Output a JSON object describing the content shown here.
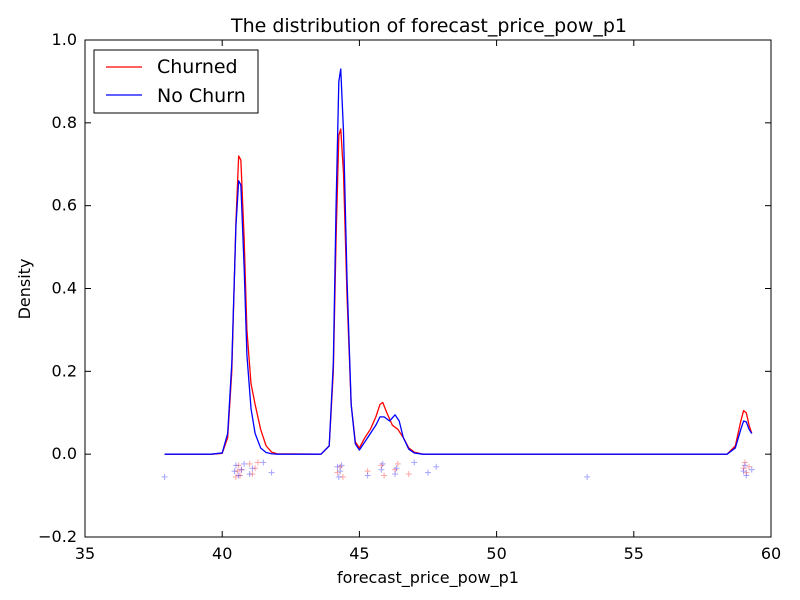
{
  "chart_data": {
    "type": "line",
    "title": "The distribution of forecast_price_pow_p1",
    "xlabel": "forecast_price_pow_p1",
    "ylabel": "Density",
    "xlim": [
      35,
      60
    ],
    "ylim": [
      -0.2,
      1.0
    ],
    "xticks": [
      35,
      40,
      45,
      50,
      55,
      60
    ],
    "xtick_labels": [
      "35",
      "40",
      "45",
      "50",
      "55",
      "60"
    ],
    "yticks": [
      -0.2,
      0.0,
      0.2,
      0.4,
      0.6,
      0.8,
      1.0
    ],
    "ytick_labels": [
      "−0.2",
      "0.0",
      "0.2",
      "0.4",
      "0.6",
      "0.8",
      "1.0"
    ],
    "grid": false,
    "legend_position": "top-left",
    "series": [
      {
        "name": "Churned",
        "color": "#ff0000",
        "points": [
          [
            37.9,
            0.0
          ],
          [
            39.6,
            0.0
          ],
          [
            40.0,
            0.002
          ],
          [
            40.2,
            0.04
          ],
          [
            40.35,
            0.2
          ],
          [
            40.5,
            0.56
          ],
          [
            40.6,
            0.72
          ],
          [
            40.68,
            0.71
          ],
          [
            40.8,
            0.52
          ],
          [
            40.9,
            0.3
          ],
          [
            41.05,
            0.17
          ],
          [
            41.2,
            0.12
          ],
          [
            41.4,
            0.06
          ],
          [
            41.6,
            0.02
          ],
          [
            41.8,
            0.005
          ],
          [
            42.0,
            0.001
          ],
          [
            43.6,
            0.0
          ],
          [
            43.9,
            0.02
          ],
          [
            44.05,
            0.2
          ],
          [
            44.15,
            0.52
          ],
          [
            44.25,
            0.77
          ],
          [
            44.32,
            0.785
          ],
          [
            44.42,
            0.68
          ],
          [
            44.55,
            0.38
          ],
          [
            44.7,
            0.12
          ],
          [
            44.85,
            0.03
          ],
          [
            45.0,
            0.015
          ],
          [
            45.2,
            0.04
          ],
          [
            45.4,
            0.06
          ],
          [
            45.6,
            0.09
          ],
          [
            45.75,
            0.12
          ],
          [
            45.85,
            0.125
          ],
          [
            46.0,
            0.1
          ],
          [
            46.2,
            0.07
          ],
          [
            46.4,
            0.06
          ],
          [
            46.6,
            0.04
          ],
          [
            46.8,
            0.015
          ],
          [
            47.0,
            0.005
          ],
          [
            47.3,
            0.0
          ],
          [
            58.4,
            0.0
          ],
          [
            58.7,
            0.02
          ],
          [
            58.9,
            0.08
          ],
          [
            59.0,
            0.105
          ],
          [
            59.1,
            0.1
          ],
          [
            59.2,
            0.07
          ],
          [
            59.3,
            0.05
          ]
        ]
      },
      {
        "name": "No Churn",
        "color": "#0000ff",
        "points": [
          [
            37.9,
            0.0
          ],
          [
            39.6,
            0.0
          ],
          [
            40.0,
            0.003
          ],
          [
            40.2,
            0.05
          ],
          [
            40.35,
            0.22
          ],
          [
            40.5,
            0.55
          ],
          [
            40.6,
            0.66
          ],
          [
            40.68,
            0.65
          ],
          [
            40.8,
            0.45
          ],
          [
            40.9,
            0.24
          ],
          [
            41.05,
            0.11
          ],
          [
            41.2,
            0.05
          ],
          [
            41.4,
            0.015
          ],
          [
            41.6,
            0.004
          ],
          [
            41.8,
            0.001
          ],
          [
            42.0,
            0.0
          ],
          [
            43.6,
            0.0
          ],
          [
            43.9,
            0.02
          ],
          [
            44.05,
            0.22
          ],
          [
            44.15,
            0.6
          ],
          [
            44.25,
            0.9
          ],
          [
            44.32,
            0.93
          ],
          [
            44.42,
            0.78
          ],
          [
            44.55,
            0.42
          ],
          [
            44.7,
            0.12
          ],
          [
            44.85,
            0.025
          ],
          [
            45.0,
            0.01
          ],
          [
            45.2,
            0.03
          ],
          [
            45.4,
            0.05
          ],
          [
            45.6,
            0.07
          ],
          [
            45.75,
            0.09
          ],
          [
            45.9,
            0.09
          ],
          [
            46.1,
            0.08
          ],
          [
            46.3,
            0.095
          ],
          [
            46.45,
            0.08
          ],
          [
            46.6,
            0.04
          ],
          [
            46.8,
            0.012
          ],
          [
            47.0,
            0.003
          ],
          [
            47.3,
            0.0
          ],
          [
            58.4,
            0.0
          ],
          [
            58.7,
            0.015
          ],
          [
            58.9,
            0.06
          ],
          [
            59.0,
            0.08
          ],
          [
            59.1,
            0.078
          ],
          [
            59.2,
            0.06
          ],
          [
            59.3,
            0.05
          ]
        ]
      }
    ],
    "rug": {
      "marker": "+",
      "y_range": [
        -0.055,
        -0.02
      ],
      "series": [
        {
          "name": "Churned",
          "color": "#ff0000",
          "x": [
            40.5,
            40.55,
            40.6,
            40.65,
            40.7,
            41.0,
            41.1,
            41.2,
            41.3,
            44.2,
            44.3,
            44.4,
            45.3,
            45.8,
            45.9,
            46.3,
            46.4,
            46.8,
            59.0,
            59.05,
            59.1,
            59.2
          ]
        },
        {
          "name": "No Churn",
          "color": "#0000ff",
          "x": [
            37.9,
            40.45,
            40.5,
            40.6,
            40.7,
            40.8,
            41.0,
            41.1,
            41.5,
            41.8,
            44.2,
            44.25,
            44.3,
            44.35,
            45.3,
            45.8,
            45.85,
            46.3,
            46.35,
            47.0,
            47.5,
            47.8,
            53.3,
            59.0,
            59.05,
            59.1,
            59.3
          ]
        }
      ]
    }
  }
}
